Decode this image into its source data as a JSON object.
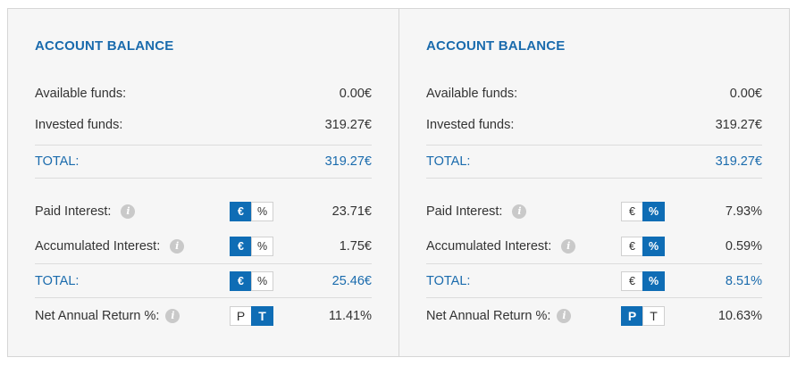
{
  "panels": [
    {
      "title": "ACCOUNT BALANCE",
      "available_label": "Available funds:",
      "available_value": "0.00€",
      "invested_label": "Invested funds:",
      "invested_value": "319.27€",
      "total1_label": "TOTAL:",
      "total1_value": "319.27€",
      "paid_label": "Paid Interest:",
      "paid_value": "23.71€",
      "accum_label": "Accumulated Interest:",
      "accum_value": "1.75€",
      "total2_label": "TOTAL:",
      "total2_value": "25.46€",
      "net_label": "Net Annual Return %:",
      "net_value": "11.41%",
      "currency_toggle": {
        "euro": "€",
        "percent": "%",
        "selected": "euro"
      },
      "net_toggle": {
        "p": "P",
        "t": "T",
        "selected": "T"
      }
    },
    {
      "title": "ACCOUNT BALANCE",
      "available_label": "Available funds:",
      "available_value": "0.00€",
      "invested_label": "Invested funds:",
      "invested_value": "319.27€",
      "total1_label": "TOTAL:",
      "total1_value": "319.27€",
      "paid_label": "Paid Interest:",
      "paid_value": "7.93%",
      "accum_label": "Accumulated Interest:",
      "accum_value": "0.59%",
      "total2_label": "TOTAL:",
      "total2_value": "8.51%",
      "net_label": "Net Annual Return %:",
      "net_value": "10.63%",
      "currency_toggle": {
        "euro": "€",
        "percent": "%",
        "selected": "percent"
      },
      "net_toggle": {
        "p": "P",
        "t": "T",
        "selected": "P"
      }
    }
  ],
  "info_icon": "info-circle-icon",
  "colors": {
    "accent": "#1a6bad",
    "active_toggle": "#0f6db5",
    "panel_bg": "#f6f6f6"
  }
}
